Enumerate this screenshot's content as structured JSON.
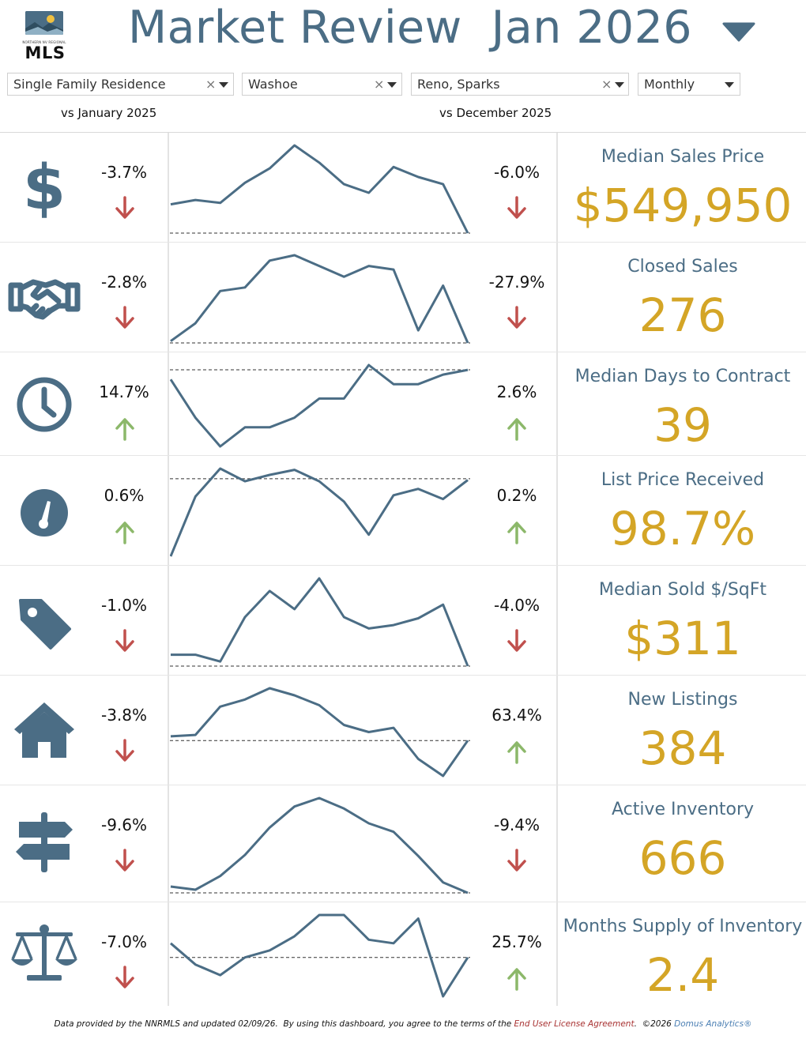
{
  "header": {
    "logo_small_text": "NORTHERN NV REGIONAL",
    "logo_text": "MLS",
    "title": "Market Review  Jan 2026"
  },
  "filters": [
    {
      "value": "Single Family Residence",
      "clearable": true
    },
    {
      "value": "Washoe",
      "clearable": true
    },
    {
      "value": "Reno, Sparks",
      "clearable": true
    },
    {
      "value": "Monthly",
      "clearable": false
    }
  ],
  "clear_glyph": "×",
  "comparisons": {
    "left": "vs January 2025",
    "right": "vs December 2025"
  },
  "colors": {
    "brand": "#4b6d85",
    "value": "#d4a526",
    "down": "#c0504d",
    "up": "#8cb86a"
  },
  "metrics": [
    {
      "name": "Median Sales Price",
      "value": "$549,950",
      "icon": "dollar-icon",
      "yoy": "-3.7%",
      "yoy_dir": "down",
      "mom": "-6.0%",
      "mom_dir": "down",
      "trend": [
        16,
        19,
        17,
        31,
        41,
        57,
        45,
        30,
        24,
        42,
        35,
        30,
        -4
      ],
      "baseline": -4
    },
    {
      "name": "Closed Sales",
      "value": "276",
      "icon": "handshake-icon",
      "yoy": "-2.8%",
      "yoy_dir": "down",
      "mom": "-27.9%",
      "mom_dir": "down",
      "trend": [
        2,
        12,
        30,
        32,
        47,
        50,
        44,
        38,
        44,
        42,
        8,
        33,
        1
      ],
      "baseline": 1
    },
    {
      "name": "Median Days to Contract",
      "value": "39",
      "icon": "clock-icon",
      "yoy": "14.7%",
      "yoy_dir": "up",
      "mom": "2.6%",
      "mom_dir": "up",
      "trend": [
        52,
        44,
        38,
        42,
        42,
        44,
        48,
        48,
        55,
        51,
        51,
        53,
        54
      ],
      "baseline": 54
    },
    {
      "name": "List Price Received",
      "value": "98.7%",
      "icon": "gauge-icon",
      "yoy": "0.6%",
      "yoy_dir": "up",
      "mom": "0.2%",
      "mom_dir": "up",
      "trend": [
        -8,
        39,
        61,
        51,
        56,
        60,
        51,
        35,
        9,
        40,
        45,
        37,
        52
      ],
      "baseline": 53
    },
    {
      "name": "Median Sold $/SqFt",
      "value": "$311",
      "icon": "tag-icon",
      "yoy": "-1.0%",
      "yoy_dir": "down",
      "mom": "-4.0%",
      "mom_dir": "down",
      "trend": [
        8,
        8,
        2,
        41,
        64,
        48,
        75,
        41,
        31,
        34,
        40,
        52,
        -2
      ],
      "baseline": -2
    },
    {
      "name": "New Listings",
      "value": "384",
      "icon": "house-icon",
      "yoy": "-3.8%",
      "yoy_dir": "down",
      "mom": "63.4%",
      "mom_dir": "up",
      "trend": [
        22,
        23,
        43,
        48,
        56,
        51,
        44,
        30,
        25,
        28,
        6,
        -6,
        19
      ],
      "baseline": 19
    },
    {
      "name": "Active Inventory",
      "value": "666",
      "icon": "signpost-icon",
      "yoy": "-9.6%",
      "yoy_dir": "down",
      "mom": "-9.4%",
      "mom_dir": "down",
      "trend": [
        12,
        9,
        22,
        42,
        68,
        88,
        96,
        86,
        72,
        64,
        41,
        16,
        6
      ],
      "baseline": 6
    },
    {
      "name": "Months Supply of Inventory",
      "value": "2.4",
      "icon": "scale-icon",
      "yoy": "-7.0%",
      "yoy_dir": "down",
      "mom": "25.7%",
      "mom_dir": "up",
      "trend": [
        5.5,
        4.9,
        4.6,
        5.1,
        5.3,
        5.7,
        6.3,
        6.3,
        5.6,
        5.5,
        6.2,
        4.0,
        5.1
      ],
      "baseline": 5.1
    }
  ],
  "footer": {
    "text_before": "Data provided by the NNRMLS and updated 02/09/26.  By using this dashboard, you agree to the terms of the ",
    "license_link": "End User License Agreement",
    "text_middle": ".  ©2026 ",
    "brand_link": "Domus Analytics®"
  }
}
